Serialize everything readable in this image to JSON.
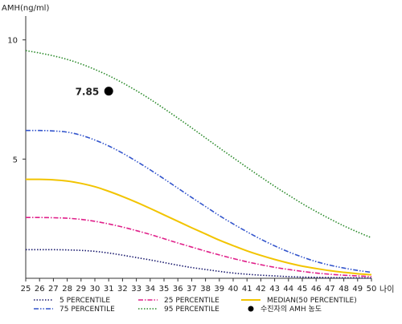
{
  "chart_data": {
    "type": "line",
    "title": "",
    "ylabel": "AMH(ng/ml)",
    "xlabel": "나이",
    "xlim": [
      25,
      50
    ],
    "ylim": [
      0,
      11
    ],
    "x_ticks": [
      25,
      26,
      27,
      28,
      29,
      30,
      31,
      32,
      33,
      34,
      35,
      36,
      37,
      38,
      39,
      40,
      41,
      42,
      43,
      44,
      45,
      46,
      47,
      48,
      49,
      50
    ],
    "y_ticks": [
      5,
      10
    ],
    "x": [
      25,
      26,
      27,
      28,
      29,
      30,
      31,
      32,
      33,
      34,
      35,
      36,
      37,
      38,
      39,
      40,
      41,
      42,
      43,
      44,
      45,
      46,
      47,
      48,
      49,
      50
    ],
    "series": [
      {
        "name": "5 PERCENTILE",
        "color": "#1a1a6e",
        "dash": "dotted",
        "values": [
          1.2,
          1.2,
          1.2,
          1.19,
          1.17,
          1.13,
          1.06,
          0.97,
          0.87,
          0.77,
          0.66,
          0.55,
          0.45,
          0.37,
          0.29,
          0.22,
          0.17,
          0.13,
          0.1,
          0.07,
          0.05,
          0.04,
          0.03,
          0.02,
          0.02,
          0.01
        ]
      },
      {
        "name": "25 PERCENTILE",
        "color": "#e0208a",
        "dash": "dash-dot",
        "values": [
          2.55,
          2.55,
          2.54,
          2.52,
          2.47,
          2.39,
          2.28,
          2.15,
          2.0,
          1.84,
          1.66,
          1.48,
          1.31,
          1.14,
          0.98,
          0.83,
          0.69,
          0.57,
          0.46,
          0.37,
          0.29,
          0.22,
          0.17,
          0.13,
          0.1,
          0.07
        ]
      },
      {
        "name": "MEDIAN(50 PERCENTILE)",
        "color": "#f2c400",
        "dash": "solid",
        "values": [
          4.15,
          4.15,
          4.13,
          4.08,
          3.98,
          3.84,
          3.65,
          3.43,
          3.19,
          2.93,
          2.66,
          2.39,
          2.12,
          1.86,
          1.6,
          1.37,
          1.15,
          0.96,
          0.79,
          0.64,
          0.51,
          0.41,
          0.32,
          0.25,
          0.19,
          0.15
        ]
      },
      {
        "name": "75 PERCENTILE",
        "color": "#3355cc",
        "dash": "dash-dot-dot",
        "values": [
          6.2,
          6.2,
          6.18,
          6.13,
          6.0,
          5.8,
          5.55,
          5.25,
          4.91,
          4.55,
          4.17,
          3.78,
          3.39,
          3.01,
          2.63,
          2.28,
          1.95,
          1.64,
          1.36,
          1.11,
          0.89,
          0.7,
          0.55,
          0.43,
          0.33,
          0.25
        ]
      },
      {
        "name": "95 PERCENTILE",
        "color": "#2a8a2a",
        "dash": "dotted",
        "values": [
          9.55,
          9.45,
          9.33,
          9.18,
          8.99,
          8.76,
          8.5,
          8.2,
          7.87,
          7.51,
          7.12,
          6.72,
          6.31,
          5.89,
          5.47,
          5.06,
          4.65,
          4.25,
          3.86,
          3.49,
          3.13,
          2.8,
          2.49,
          2.2,
          1.94,
          1.7
        ]
      }
    ],
    "annotation": {
      "label": "7.85",
      "x": 31,
      "y": 7.85,
      "legend_name": "수진자의 AMH 농도"
    },
    "legend_position": "bottom"
  }
}
